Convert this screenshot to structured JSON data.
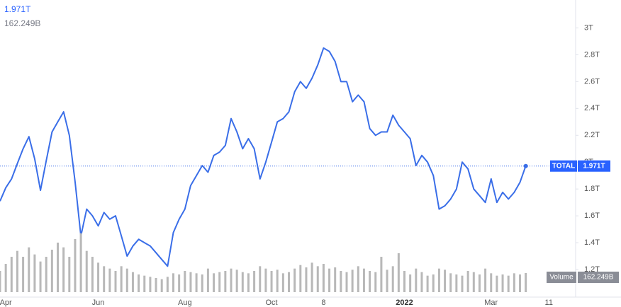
{
  "chart_data": {
    "type": "line",
    "categories": [
      null,
      "Apr",
      null,
      null,
      null,
      null,
      null,
      null,
      null,
      null,
      null,
      null,
      null,
      null,
      null,
      null,
      null,
      "Jun",
      null,
      null,
      null,
      null,
      null,
      null,
      null,
      null,
      null,
      null,
      null,
      null,
      null,
      null,
      "Aug",
      null,
      null,
      null,
      null,
      null,
      null,
      null,
      null,
      null,
      null,
      null,
      null,
      null,
      null,
      "Oct",
      null,
      null,
      null,
      null,
      null,
      null,
      null,
      null,
      "8",
      null,
      null,
      null,
      null,
      null,
      null,
      null,
      null,
      null,
      null,
      null,
      null,
      null,
      "2022",
      null,
      null,
      null,
      null,
      null,
      null,
      null,
      null,
      null,
      null,
      null,
      null,
      null,
      null,
      "Mar",
      null,
      null,
      null,
      null,
      null,
      null,
      null,
      null,
      null,
      "11"
    ],
    "series": [
      {
        "name": "TOTAL",
        "color": "#3a6ee8",
        "last_value_label": "1.971T",
        "values": [
          1.71,
          1.81,
          1.875,
          1.99,
          2.1,
          2.19,
          2.025,
          1.79,
          2.01,
          2.225,
          2.3,
          2.375,
          2.2,
          1.85,
          1.45,
          1.65,
          1.6,
          1.525,
          1.625,
          1.575,
          1.6,
          1.45,
          1.3,
          1.375,
          1.425,
          1.4,
          1.375,
          1.325,
          1.275,
          1.225,
          1.475,
          1.575,
          1.65,
          1.825,
          1.9,
          1.975,
          1.925,
          2.05,
          2.075,
          2.125,
          2.325,
          2.225,
          2.1,
          2.175,
          2.1,
          1.875,
          2.0,
          2.15,
          2.3,
          2.325,
          2.375,
          2.525,
          2.6,
          2.55,
          2.625,
          2.725,
          2.85,
          2.825,
          2.75,
          2.6,
          2.6,
          2.45,
          2.5,
          2.45,
          2.25,
          2.2,
          2.225,
          2.225,
          2.35,
          2.275,
          2.225,
          2.175,
          1.975,
          2.05,
          2.0,
          1.9,
          1.65,
          1.675,
          1.725,
          1.8,
          2.0,
          1.95,
          1.8,
          1.75,
          1.7,
          1.875,
          1.7,
          1.775,
          1.725,
          1.775,
          1.85,
          1.971,
          null,
          null,
          null,
          null
        ]
      },
      {
        "name": "Volume",
        "color": "#b8b8b8",
        "axis": "volume",
        "last_value_label": "162.249B",
        "values": [
          180,
          240,
          300,
          350,
          300,
          380,
          320,
          260,
          300,
          360,
          420,
          380,
          300,
          450,
          500,
          350,
          300,
          250,
          220,
          200,
          180,
          220,
          200,
          170,
          150,
          140,
          130,
          120,
          110,
          130,
          160,
          150,
          180,
          170,
          160,
          150,
          200,
          160,
          170,
          180,
          200,
          190,
          170,
          160,
          180,
          220,
          200,
          180,
          190,
          160,
          170,
          200,
          230,
          210,
          250,
          220,
          240,
          200,
          210,
          180,
          170,
          190,
          220,
          200,
          180,
          170,
          300,
          190,
          220,
          330,
          180,
          150,
          200,
          170,
          140,
          150,
          200,
          190,
          160,
          150,
          140,
          180,
          170,
          150,
          200,
          160,
          140,
          150,
          140,
          160,
          150,
          162.249,
          null,
          null,
          null,
          null
        ]
      }
    ],
    "ylim": [
      1.1,
      3.05
    ],
    "yticks": [
      {
        "value": 3,
        "label": "3T"
      },
      {
        "value": 2.8,
        "label": "2.8T"
      },
      {
        "value": 2.6,
        "label": "2.6T"
      },
      {
        "value": 2.4,
        "label": "2.4T"
      },
      {
        "value": 2.2,
        "label": "2.2T"
      },
      {
        "value": 2,
        "label": "2T"
      },
      {
        "value": 1.8,
        "label": "1.8T"
      },
      {
        "value": 1.6,
        "label": "1.6T"
      },
      {
        "value": 1.4,
        "label": "1.4T"
      },
      {
        "value": 1.2,
        "label": "1.2T"
      }
    ],
    "volume_lim": [
      0,
      600
    ]
  }
}
